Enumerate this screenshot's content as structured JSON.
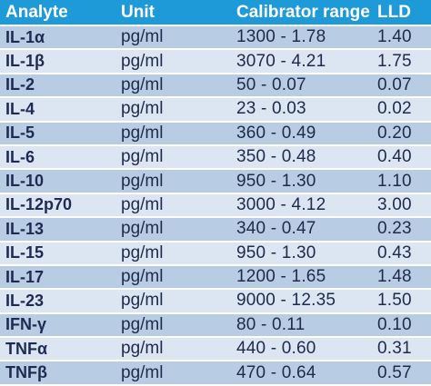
{
  "table": {
    "headers": [
      "Analyte",
      "Unit",
      "Calibrator range",
      "LLD"
    ],
    "rows": [
      {
        "analyte": "IL-1α",
        "unit": "pg/ml",
        "range": "1300 - 1.78",
        "lld": "1.40"
      },
      {
        "analyte": "IL-1β",
        "unit": "pg/ml",
        "range": "3070 - 4.21",
        "lld": "1.75"
      },
      {
        "analyte": "IL-2",
        "unit": "pg/ml",
        "range": "50 - 0.07",
        "lld": "0.07"
      },
      {
        "analyte": "IL-4",
        "unit": "pg/ml",
        "range": "23 - 0.03",
        "lld": "0.02"
      },
      {
        "analyte": "IL-5",
        "unit": "pg/ml",
        "range": "360 - 0.49",
        "lld": "0.20"
      },
      {
        "analyte": "IL-6",
        "unit": "pg/ml",
        "range": "350 - 0.48",
        "lld": "0.40"
      },
      {
        "analyte": "IL-10",
        "unit": "pg/ml",
        "range": "950 - 1.30",
        "lld": "1.10"
      },
      {
        "analyte": "IL-12p70",
        "unit": "pg/ml",
        "range": "3000 - 4.12",
        "lld": "3.00"
      },
      {
        "analyte": "IL-13",
        "unit": "pg/ml",
        "range": "340 - 0.47",
        "lld": "0.23"
      },
      {
        "analyte": "IL-15",
        "unit": "pg/ml",
        "range": "950 - 1.30",
        "lld": "0.43"
      },
      {
        "analyte": "IL-17",
        "unit": "pg/ml",
        "range": "1200 - 1.65",
        "lld": "1.48"
      },
      {
        "analyte": "IL-23",
        "unit": "pg/ml",
        "range": "9000 - 12.35",
        "lld": "1.50"
      },
      {
        "analyte": "IFN-γ",
        "unit": "pg/ml",
        "range": "80 - 0.11",
        "lld": "0.10"
      },
      {
        "analyte": "TNFα",
        "unit": "pg/ml",
        "range": "440 - 0.60",
        "lld": "0.31"
      },
      {
        "analyte": "TNFβ",
        "unit": "pg/ml",
        "range": "470 - 0.64",
        "lld": "0.57"
      }
    ]
  },
  "colors": {
    "header_bg": "#1f9ad9",
    "row_dark": "#b8cde4",
    "row_light": "#dbe6f2",
    "text": "#1e2a4a"
  }
}
